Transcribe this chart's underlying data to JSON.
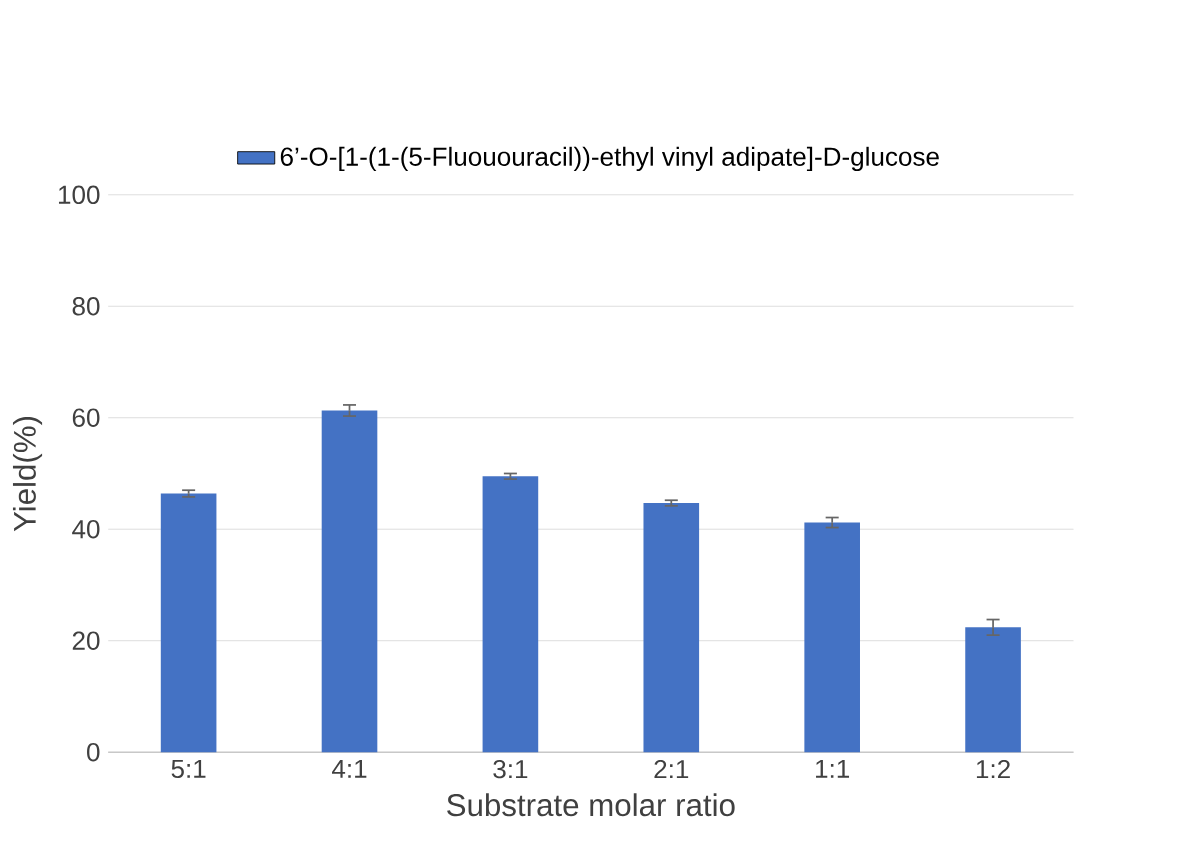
{
  "chart_data": {
    "type": "bar",
    "xlabel": "Substrate molar ratio",
    "ylabel": "Yield(%)",
    "categories": [
      "5:1",
      "4:1",
      "3:1",
      "2:1",
      "1:1",
      "1:2"
    ],
    "series": [
      {
        "name": "6’-O-[1-(1-(5-Fluououracil))-ethyl vinyl adipate]-D-glucose",
        "color": "#4472c4",
        "values": [
          46.4,
          61.3,
          49.5,
          44.7,
          41.2,
          22.4
        ],
        "errors": [
          0.6,
          1.0,
          0.5,
          0.5,
          0.9,
          1.4
        ]
      }
    ],
    "ylim": [
      0,
      100
    ],
    "yticks": [
      0,
      20,
      40,
      60,
      80,
      100
    ],
    "grid": "y",
    "legend": "top"
  }
}
